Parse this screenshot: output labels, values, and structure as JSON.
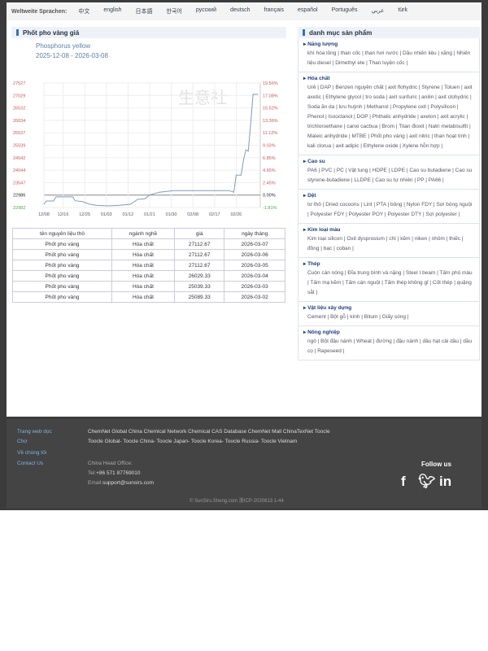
{
  "langbar": {
    "label": "Weltweite Sprachen:",
    "languages": [
      "中文",
      "english",
      "日本語",
      "한국어",
      "русский",
      "deutsch",
      "français",
      "español",
      "Português",
      "عربي",
      "türk"
    ]
  },
  "price_panel": {
    "title": "Phốt pho vàng giá"
  },
  "chart_data": {
    "type": "line",
    "title": "Phosphorus yellow",
    "subtitle": "2025-12-08 - 2026-03-08",
    "x_ticks": [
      "12/08",
      "12/16",
      "12/25",
      "01/03",
      "01/12",
      "01/21",
      "01/30",
      "02/08",
      "02/17",
      "02/26"
    ],
    "y_left_ticks": [
      "27527",
      "27029",
      "26532",
      "26034",
      "25537",
      "25039",
      "24542",
      "24044",
      "23547",
      "22986",
      "22982"
    ],
    "y_right_ticks": [
      "19.56%",
      "17.08%",
      "15.52%",
      "13.36%",
      "11.12%",
      "9.03%",
      "6.85%",
      "4.65%",
      "2.45%",
      "0.00%",
      "-1.81%"
    ],
    "ylim": [
      22982,
      27527
    ],
    "baseline": 22986,
    "grid": true,
    "line_color": "#7f9bbd",
    "series": [
      {
        "x": [
          "2025-12-08",
          "2025-12-09",
          "2025-12-12",
          "2025-12-13",
          "2025-12-20",
          "2025-12-21",
          "2025-12-24",
          "2025-12-27",
          "2025-12-30",
          "2026-01-04",
          "2026-01-08",
          "2026-01-13",
          "2026-01-16",
          "2026-01-19",
          "2026-01-21",
          "2026-01-25",
          "2026-01-31",
          "2026-02-23",
          "2026-02-25",
          "2026-02-26",
          "2026-02-28",
          "2026-03-01",
          "2026-03-02",
          "2026-03-03",
          "2026-03-04",
          "2026-03-05",
          "2026-03-07"
        ],
        "values": [
          23100,
          23220,
          23220,
          23370,
          23370,
          23230,
          23200,
          23100,
          23060,
          23040,
          23060,
          23100,
          23280,
          23300,
          23440,
          23540,
          23600,
          23600,
          23540,
          24160,
          24160,
          24700,
          25089,
          25039,
          26029,
          27112.67,
          27112.67
        ]
      }
    ]
  },
  "watermark": "生意社",
  "table": {
    "headers": [
      "tên nguyên liệu thô",
      "ngành nghề",
      "giá",
      "ngày tháng"
    ],
    "rows": [
      [
        "Phốt pho vàng",
        "Hóa chất",
        "27112.67",
        "2026-03-07"
      ],
      [
        "Phốt pho vàng",
        "Hóa chất",
        "27112.67",
        "2026-03-06"
      ],
      [
        "Phốt pho vàng",
        "Hóa chất",
        "27112.67",
        "2026-03-05"
      ],
      [
        "Phốt pho vàng",
        "Hóa chất",
        "26029.33",
        "2026-03-04"
      ],
      [
        "Phốt pho vàng",
        "Hóa chất",
        "25039.33",
        "2026-03-03"
      ],
      [
        "Phốt pho vàng",
        "Hóa chất",
        "25089.33",
        "2026-03-02"
      ]
    ]
  },
  "catalog": {
    "title": "danh mục sản phẩm",
    "categories": [
      {
        "name": "Năng lượng",
        "items": [
          "khí hóa lỏng",
          "than cốc",
          "than hơi nước",
          "Dầu nhiên liệu",
          "xăng",
          "Nhiên liệu diesel",
          "Dimethyl ete",
          "Than luyện cốc"
        ]
      },
      {
        "name": "Hóa chất",
        "items": [
          "Urê",
          "DAP",
          "Benzen nguyên chất",
          "axit flohydric",
          "Styrene",
          "Toluen",
          "axit axetic",
          "Ethylene glycol",
          "tro soda",
          "axit sunfuric",
          "anilin",
          "axit clohydric",
          "Soda ăn da",
          "lưu huỳnh",
          "Methanol",
          "Propylene oxit",
          "Polysilicon",
          "Phenol",
          "Isooctanol",
          "DOP",
          "Phthalic anhydride",
          "axeton",
          "axit acrylic",
          "trichloroethane",
          "canxi cacbua",
          "Brom",
          "Titan đioxit",
          "Natri metabisulfit",
          "Maleic anhydride",
          "MTBE",
          "Phốt pho vàng",
          "axit nitric",
          "than hoạt tính",
          "kali clorua",
          "axit adipic",
          "Ethylene oxide",
          "Xylene hỗn hợp"
        ]
      },
      {
        "name": "Cao su",
        "items": [
          "PA6",
          "PVC",
          "PC",
          "Vật tung",
          "HDPE",
          "LDPE",
          "Cao su butadiene",
          "Cao su styrene-butadiene",
          "LLDPE",
          "Cao su tự nhiên",
          "PP",
          "PA66"
        ]
      },
      {
        "name": "Dệt",
        "items": [
          "tơ thô",
          "Dried cocoons",
          "Lint",
          "PTA",
          "bông",
          "Nylon FDY",
          "Sợi bông nguội",
          "Polyester FDY",
          "Polyester POY",
          "Polyester DTY",
          "Sợi polyester"
        ]
      },
      {
        "name": "Kim loại màu",
        "items": [
          "Kim loại silicon",
          "Oxit dysprosium",
          "chì",
          "kẽm",
          "niken",
          "nhôm",
          "thiếc",
          "đồng",
          "bạc",
          "coban"
        ]
      },
      {
        "name": "Thép",
        "items": [
          "Cuộn cán nóng",
          "Đĩa trung bình và nặng",
          "Steel I beam",
          "Tấm phủ màu",
          "Tấm mạ kẽm",
          "Tấm cán nguội",
          "Tấm thép không gỉ",
          "Cốt thép",
          "quặng sắt"
        ]
      },
      {
        "name": "Vật liệu xây dựng",
        "items": [
          "Cement",
          "Bột gỗ",
          "kính",
          "Bitum",
          "Giấy sóng"
        ]
      },
      {
        "name": "Nông nghiệp",
        "items": [
          "ngô",
          "Bột đậu nành",
          "Wheat",
          "đường",
          "đậu nành",
          "dầu hạt cải dầu",
          "dầu cọ",
          "Rapeseed"
        ]
      }
    ]
  },
  "footer": {
    "nav": [
      "Trang web dọc",
      "Chợ",
      "Về chúng tôi",
      "Contact Us"
    ],
    "links1": "ChemNet Global   China Chemical Network   Chemical CAS Database   ChemNet Mall   ChinaTexNet   Toocle",
    "links2": "Toocle Global- Toocle China- Toocle Japan- Toocle Korea- Toocle Russia- Toocle Vietnam",
    "office": "China Head Office:",
    "tel_label": "Tel:",
    "tel": "+86 571 87769010",
    "email_label": "Email:",
    "email": "support@sunsirs.com",
    "follow": "Follow us",
    "copyright": "© SunSirs.Sheng.com   浙ICP-2020813 1-44"
  }
}
